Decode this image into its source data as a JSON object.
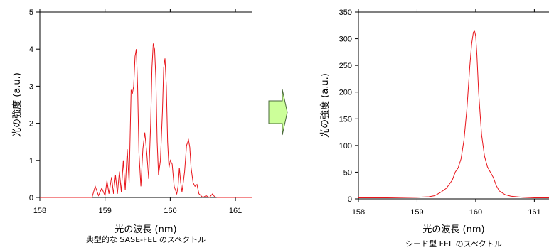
{
  "colors": {
    "trace": "#e8141a",
    "arrow_fill": "#ccff99",
    "arrow_stroke": "#4a6a3a",
    "axis": "#000000"
  },
  "arrow_icon": "right-arrow-icon",
  "chart_data": [
    {
      "type": "line",
      "caption": "典型的な SASE-FEL のスペクトル",
      "xlabel": "光の波長 (nm)",
      "ylabel": "光の強度 (a.u.)",
      "xlim": [
        158,
        161.25
      ],
      "ylim": [
        0,
        5
      ],
      "xticks": [
        158,
        159,
        160,
        161
      ],
      "yticks": [
        0,
        1,
        2,
        3,
        4,
        5
      ],
      "grid": false,
      "series": [
        {
          "x": [
            158.0,
            158.8,
            158.85,
            158.9,
            158.95,
            159.0,
            159.03,
            159.06,
            159.1,
            159.13,
            159.16,
            159.19,
            159.22,
            159.25,
            159.28,
            159.31,
            159.34,
            159.37,
            159.4,
            159.42,
            159.44,
            159.46,
            159.48,
            159.5,
            159.52,
            159.55,
            159.58,
            159.61,
            159.64,
            159.67,
            159.7,
            159.72,
            159.74,
            159.76,
            159.78,
            159.8,
            159.82,
            159.85,
            159.88,
            159.9,
            159.92,
            159.94,
            159.96,
            159.98,
            160.0,
            160.03,
            160.06,
            160.08,
            160.1,
            160.12,
            160.14,
            160.16,
            160.18,
            160.2,
            160.22,
            160.25,
            160.28,
            160.3,
            160.32,
            160.35,
            160.38,
            160.41,
            160.44,
            160.47,
            160.5,
            160.55,
            160.6,
            160.65,
            160.68,
            160.72,
            161.25
          ],
          "y": [
            0.0,
            0.0,
            0.3,
            0.05,
            0.25,
            0.05,
            0.45,
            0.1,
            0.55,
            0.1,
            0.6,
            0.1,
            0.7,
            0.15,
            1.0,
            0.2,
            1.3,
            0.4,
            2.9,
            2.8,
            3.0,
            3.8,
            4.0,
            3.0,
            1.2,
            0.3,
            1.3,
            1.75,
            1.2,
            0.5,
            2.0,
            3.5,
            4.15,
            4.0,
            3.2,
            1.5,
            0.6,
            1.0,
            2.3,
            3.5,
            3.75,
            3.0,
            1.5,
            0.8,
            1.0,
            0.9,
            0.3,
            0.2,
            0.1,
            0.3,
            0.8,
            0.4,
            0.15,
            0.4,
            0.7,
            1.4,
            1.55,
            1.35,
            0.8,
            0.4,
            0.3,
            0.35,
            0.1,
            0.05,
            0.0,
            0.05,
            0.0,
            0.1,
            0.02,
            0.0,
            0.0
          ]
        }
      ]
    },
    {
      "type": "line",
      "caption": "シード型 FEL のスペクトル",
      "xlabel": "光の波長 (nm)",
      "ylabel": "光の強度 (a.u.)",
      "xlim": [
        158,
        161.25
      ],
      "ylim": [
        0,
        350
      ],
      "xticks": [
        158,
        159,
        160,
        161
      ],
      "yticks": [
        0,
        50,
        100,
        150,
        200,
        250,
        300,
        350
      ],
      "grid": false,
      "series": [
        {
          "x": [
            158.0,
            158.5,
            159.0,
            159.2,
            159.3,
            159.4,
            159.5,
            159.6,
            159.65,
            159.7,
            159.75,
            159.8,
            159.85,
            159.9,
            159.93,
            159.96,
            159.98,
            160.0,
            160.02,
            160.05,
            160.1,
            160.15,
            160.2,
            160.25,
            160.3,
            160.35,
            160.4,
            160.5,
            160.6,
            160.8,
            161.0,
            161.25
          ],
          "y": [
            2,
            2,
            3,
            4,
            6,
            12,
            20,
            35,
            50,
            58,
            75,
            110,
            170,
            250,
            290,
            312,
            315,
            305,
            270,
            200,
            120,
            80,
            60,
            50,
            40,
            25,
            15,
            8,
            5,
            3,
            2,
            2
          ]
        }
      ]
    }
  ]
}
